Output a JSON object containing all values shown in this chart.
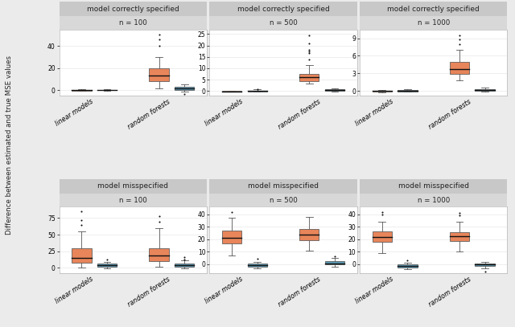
{
  "subplot_titles_row1": [
    "model correctly specified",
    "model correctly specified",
    "model correctly specified"
  ],
  "subplot_titles_row2": [
    "model misspecified",
    "model misspecified",
    "model misspecified"
  ],
  "n_labels_row1": [
    "n = 100",
    "n = 500",
    "n = 1000"
  ],
  "n_labels_row2": [
    "n = 100",
    "n = 500",
    "n = 1000"
  ],
  "ylabel": "Difference between estimated and true MSE values",
  "xticklabels": [
    "linear models",
    "random forests"
  ],
  "color_orange": "#E8855A",
  "color_blue": "#5B9BB5",
  "color_panel_bg": "#FFFFFF",
  "color_fig_bg": "#EBEBEB",
  "color_strip_top": "#C8C8C8",
  "color_strip_bot": "#D8D8D8",
  "color_grid": "#EBEBEB",
  "panels": {
    "r0c0": {
      "lm_median": 0.0,
      "lm_q1": -0.3,
      "lm_q3": 0.3,
      "lm_whislo": -0.8,
      "lm_whishi": 1.0,
      "lm_fliers": [],
      "lm2_median": 0.0,
      "lm2_q1": -0.2,
      "lm2_q3": 0.2,
      "lm2_whislo": -0.4,
      "lm2_whishi": 0.6,
      "lm2_fliers": [],
      "rf_median": 13.0,
      "rf_q1": 8.0,
      "rf_q3": 19.5,
      "rf_whislo": 1.5,
      "rf_whishi": 30.0,
      "rf_fliers": [
        40.0,
        46.0,
        50.0
      ],
      "rf2_median": 1.5,
      "rf2_q1": 0.3,
      "rf2_q3": 2.8,
      "rf2_whislo": -1.5,
      "rf2_whishi": 5.5,
      "rf2_fliers": [
        -3.5
      ],
      "ylim": [
        -5,
        55
      ],
      "yticks": [
        0,
        20,
        40
      ]
    },
    "r0c1": {
      "lm_median": -0.05,
      "lm_q1": -0.15,
      "lm_q3": 0.05,
      "lm_whislo": -0.3,
      "lm_whishi": 0.2,
      "lm_fliers": [],
      "lm2_median": 0.05,
      "lm2_q1": -0.05,
      "lm2_q3": 0.3,
      "lm2_whislo": -0.2,
      "lm2_whishi": 0.7,
      "lm2_fliers": [
        1.0
      ],
      "rf_median": 6.0,
      "rf_q1": 4.5,
      "rf_q3": 7.5,
      "rf_whislo": 3.2,
      "rf_whishi": 11.5,
      "rf_fliers": [
        14.0,
        16.5,
        17.5,
        18.0,
        21.0,
        24.5
      ],
      "rf2_median": 0.35,
      "rf2_q1": 0.1,
      "rf2_q3": 0.8,
      "rf2_whislo": -0.3,
      "rf2_whishi": 1.3,
      "rf2_fliers": [],
      "ylim": [
        -2,
        27
      ],
      "yticks": [
        0,
        5,
        10,
        15,
        20,
        25
      ]
    },
    "r0c2": {
      "lm_median": -0.03,
      "lm_q1": -0.12,
      "lm_q3": 0.05,
      "lm_whislo": -0.2,
      "lm_whishi": 0.15,
      "lm_fliers": [],
      "lm2_median": 0.02,
      "lm2_q1": -0.05,
      "lm2_q3": 0.1,
      "lm2_whislo": -0.15,
      "lm2_whishi": 0.3,
      "lm2_fliers": [],
      "rf_median": 3.7,
      "rf_q1": 2.9,
      "rf_q3": 5.0,
      "rf_whislo": 1.8,
      "rf_whishi": 7.0,
      "rf_fliers": [
        8.0,
        8.8,
        9.5
      ],
      "rf2_median": 0.12,
      "rf2_q1": 0.03,
      "rf2_q3": 0.32,
      "rf2_whislo": -0.1,
      "rf2_whishi": 0.55,
      "rf2_fliers": [],
      "ylim": [
        -0.8,
        10.5
      ],
      "yticks": [
        0,
        3,
        6,
        9
      ]
    },
    "r1c0": {
      "lm_median": 15.0,
      "lm_q1": 7.0,
      "lm_q3": 30.0,
      "lm_whislo": 0.0,
      "lm_whishi": 55.0,
      "lm_fliers": [
        65.0,
        72.0,
        85.0
      ],
      "lm2_median": 3.5,
      "lm2_q1": 1.0,
      "lm2_q3": 6.0,
      "lm2_whislo": -1.0,
      "lm2_whishi": 9.0,
      "lm2_fliers": [
        12.0
      ],
      "rf_median": 18.0,
      "rf_q1": 10.0,
      "rf_q3": 30.0,
      "rf_whislo": 2.0,
      "rf_whishi": 60.0,
      "rf_fliers": [
        70.0,
        78.0
      ],
      "rf2_median": 3.5,
      "rf2_q1": 1.0,
      "rf2_q3": 6.5,
      "rf2_whislo": -1.5,
      "rf2_whishi": 11.0,
      "rf2_fliers": [
        13.0,
        16.0
      ],
      "ylim": [
        -8,
        92
      ],
      "yticks": [
        0,
        25,
        50,
        75
      ]
    },
    "r1c1": {
      "lm_median": 21.0,
      "lm_q1": 16.5,
      "lm_q3": 27.0,
      "lm_whislo": 7.0,
      "lm_whishi": 37.0,
      "lm_fliers": [
        42.0
      ],
      "lm2_median": -0.8,
      "lm2_q1": -2.0,
      "lm2_q3": 0.5,
      "lm2_whislo": -3.5,
      "lm2_whishi": 2.0,
      "lm2_fliers": [
        4.5
      ],
      "rf_median": 23.5,
      "rf_q1": 19.0,
      "rf_q3": 28.5,
      "rf_whislo": 11.0,
      "rf_whishi": 38.0,
      "rf_fliers": [],
      "rf2_median": 0.8,
      "rf2_q1": -0.3,
      "rf2_q3": 2.5,
      "rf2_whislo": -2.0,
      "rf2_whishi": 5.0,
      "rf2_fliers": [
        6.5
      ],
      "ylim": [
        -7,
        46
      ],
      "yticks": [
        0,
        10,
        20,
        30,
        40
      ]
    },
    "r1c2": {
      "lm_median": 22.0,
      "lm_q1": 18.0,
      "lm_q3": 26.5,
      "lm_whislo": 9.0,
      "lm_whishi": 34.0,
      "lm_fliers": [
        40.0,
        42.0
      ],
      "lm2_median": -1.0,
      "lm2_q1": -2.5,
      "lm2_q3": 0.2,
      "lm2_whislo": -4.0,
      "lm2_whishi": 1.5,
      "lm2_fliers": [
        3.5
      ],
      "rf_median": 22.5,
      "rf_q1": 18.5,
      "rf_q3": 26.0,
      "rf_whislo": 10.0,
      "rf_whishi": 34.0,
      "rf_fliers": [
        39.0,
        41.0
      ],
      "rf2_median": -0.1,
      "rf2_q1": -1.2,
      "rf2_q3": 0.8,
      "rf2_whislo": -3.5,
      "rf2_whishi": 2.0,
      "rf2_fliers": [
        -5.5
      ],
      "ylim": [
        -7,
        46
      ],
      "yticks": [
        0,
        10,
        20,
        30,
        40
      ]
    }
  }
}
